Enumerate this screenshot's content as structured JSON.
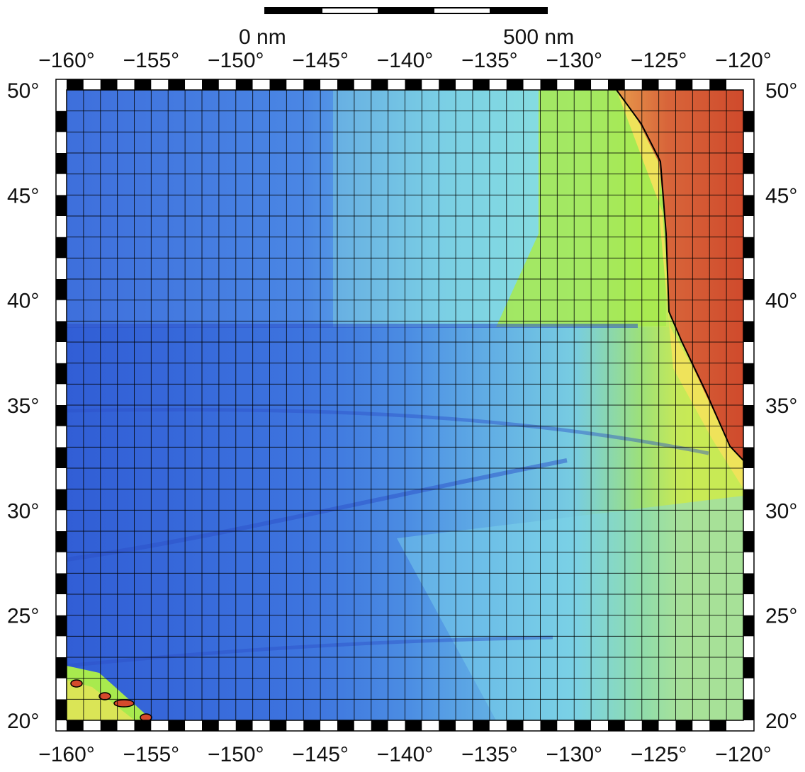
{
  "map": {
    "lon_labels": [
      "−160°",
      "−155°",
      "−150°",
      "−145°",
      "−140°",
      "−135°",
      "−130°",
      "−125°",
      "−120°"
    ],
    "lat_labels": [
      "50°",
      "45°",
      "40°",
      "35°",
      "30°",
      "25°",
      "20°"
    ],
    "lon_range": [
      -160,
      -120
    ],
    "lat_range": [
      20,
      50
    ],
    "grid_step_degrees": 1,
    "scale_bar": {
      "start_label": "0 nm",
      "end_label": "500 nm"
    },
    "colors": {
      "deep_ocean": "#3563d8",
      "mid_ocean": "#4f8de6",
      "shallow_ocean": "#7fd7e8",
      "continental_slope": "#9fe65a",
      "shelf": "#f2e25a",
      "land_low": "#e8904a",
      "land_high": "#d54a2c",
      "coastline": "#000000",
      "frame_dark": "#000000",
      "frame_light": "#ffffff"
    }
  }
}
